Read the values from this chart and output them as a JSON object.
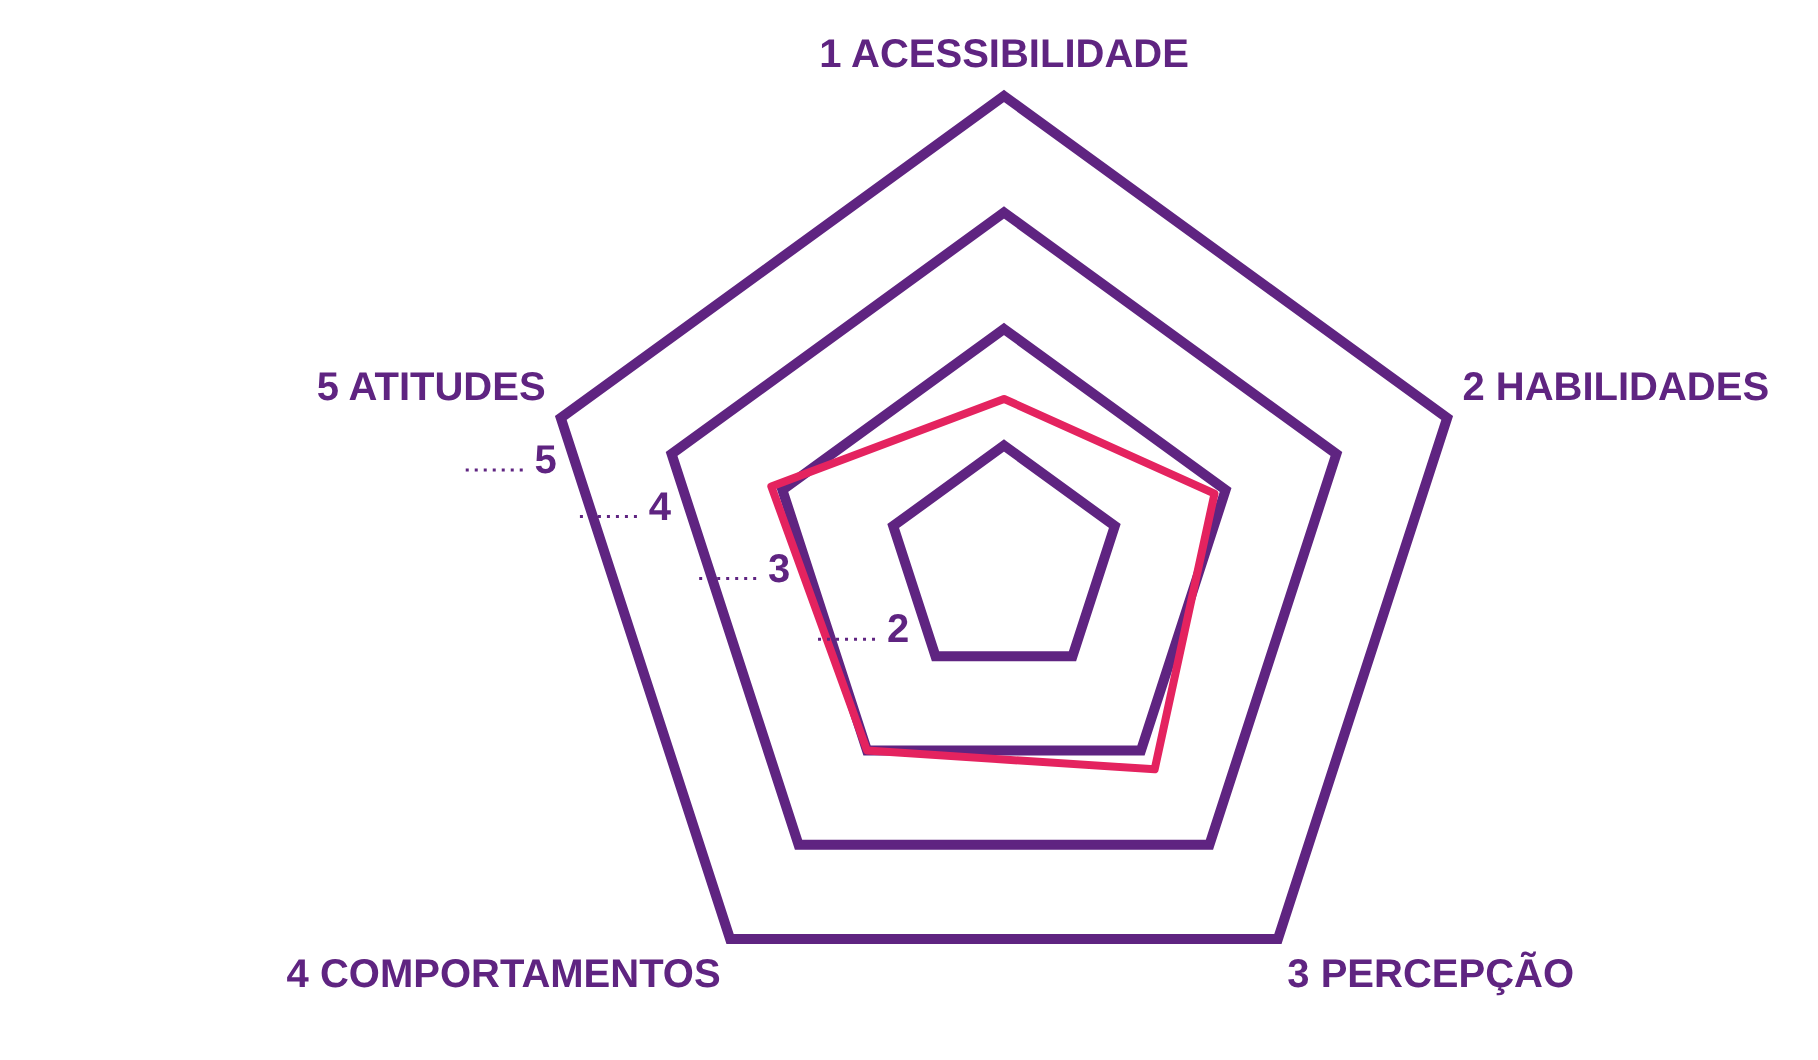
{
  "chart_data": {
    "type": "radar",
    "categories": [
      "1 ACESSIBILIDADE",
      "2 HABILIDADES",
      "3 PERCEPÇÃO",
      "4 COMPORTAMENTOS",
      "5 ATITUDES"
    ],
    "series": [
      {
        "color": "#e4235f",
        "values": [
          2.4,
          2.9,
          3.2,
          3.0,
          3.1
        ]
      }
    ],
    "ylim": [
      1,
      5
    ],
    "yticks": [
      2,
      3,
      4,
      5
    ],
    "grid": true,
    "legend": false,
    "marker": "none",
    "line_style": "solid"
  }
}
